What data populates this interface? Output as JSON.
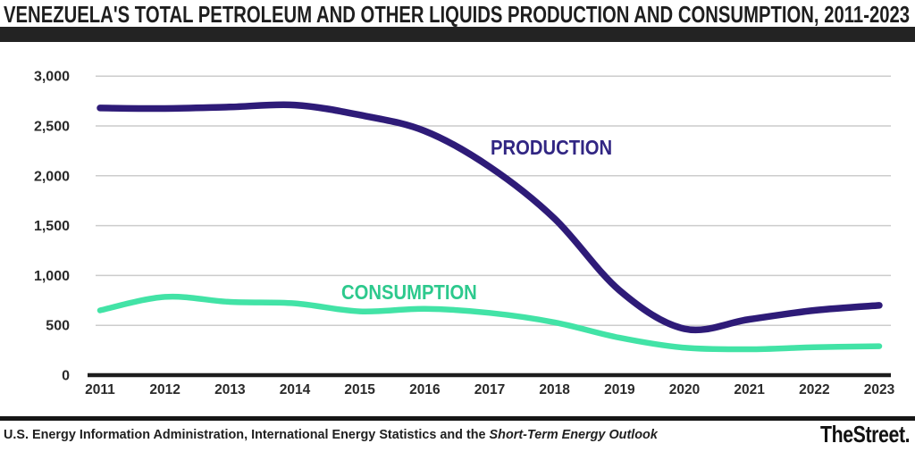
{
  "title": "VENEZUELA'S TOTAL PETROLEUM AND OTHER LIQUIDS PRODUCTION AND CONSUMPTION, 2011-2023",
  "footer": {
    "source_prefix": "U.S. Energy Information Administration, International Energy Statistics and the ",
    "source_italic": "Short-Term Energy Outlook",
    "brand": "TheStreet."
  },
  "colors": {
    "title_text": "#1e1e1e",
    "top_bar": "#232323",
    "gridline": "#cccccc",
    "axis_line": "#1d1d1d",
    "tick_text": "#2a2a2a",
    "production_line": "#2e1b78",
    "production_label": "#312683",
    "consumption_line": "#42e3a6",
    "consumption_label": "#2dc98d"
  },
  "chart_data": {
    "type": "line",
    "title": "VENEZUELA'S TOTAL PETROLEUM AND OTHER LIQUIDS PRODUCTION AND CONSUMPTION, 2011-2023",
    "categories": [
      "2011",
      "2012",
      "2013",
      "2014",
      "2015",
      "2016",
      "2017",
      "2018",
      "2019",
      "2020",
      "2021",
      "2022",
      "2023"
    ],
    "series": [
      {
        "name": "PRODUCTION",
        "color": "#2e1b78",
        "label_color": "#312683",
        "values": [
          2680,
          2675,
          2690,
          2710,
          2610,
          2450,
          2090,
          1570,
          850,
          465,
          560,
          650,
          700
        ]
      },
      {
        "name": "CONSUMPTION",
        "color": "#42e3a6",
        "label_color": "#2dc98d",
        "values": [
          650,
          785,
          735,
          720,
          640,
          665,
          625,
          530,
          375,
          275,
          260,
          280,
          290
        ]
      }
    ],
    "xlabel": "",
    "ylabel": "",
    "ylim": [
      0,
      3000
    ],
    "y_tick_interval": 500,
    "y_ticks": [
      "3,000",
      "2,500",
      "2,000",
      "1,500",
      "1,000",
      "500",
      "0"
    ],
    "grid": true,
    "legend_position": "inline-annotations"
  }
}
